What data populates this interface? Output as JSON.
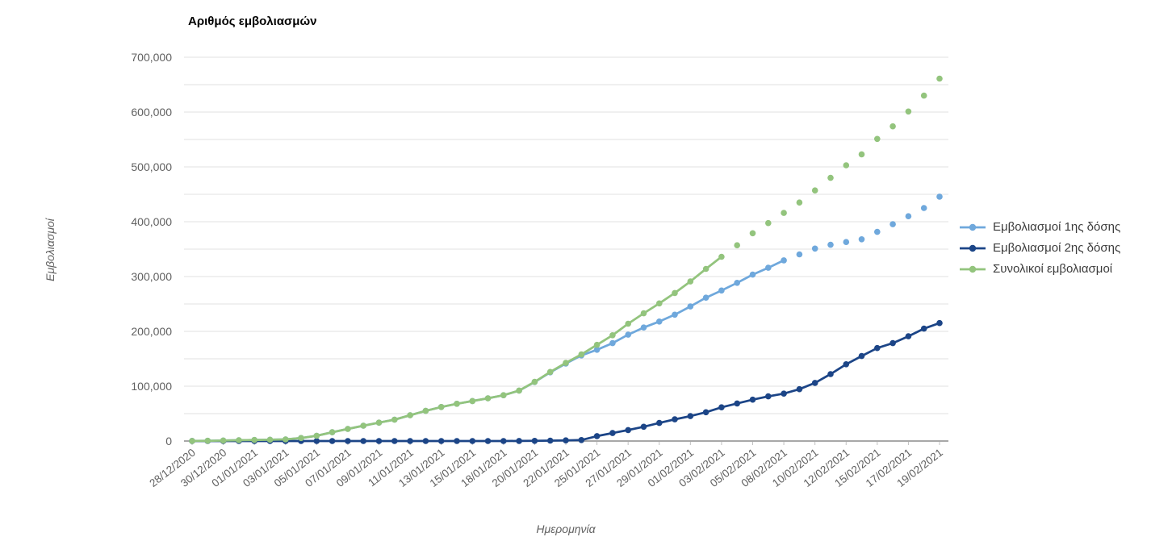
{
  "title": "Αριθμός εμβολιασμών",
  "chart_data": {
    "type": "line",
    "xlabel": "Ημερομηνία",
    "ylabel": "Εμβολιασμοί",
    "ylim": [
      0,
      700000
    ],
    "y_ticks": [
      0,
      100000,
      200000,
      300000,
      400000,
      500000,
      600000,
      700000
    ],
    "y_grid_interval": 50000,
    "x_label_every": 2,
    "grid": true,
    "legend_position": "right",
    "x": [
      "28/12/2020",
      "29/12/2020",
      "30/12/2020",
      "31/12/2020",
      "01/01/2021",
      "02/01/2021",
      "03/01/2021",
      "04/01/2021",
      "05/01/2021",
      "06/01/2021",
      "07/01/2021",
      "08/01/2021",
      "09/01/2021",
      "10/01/2021",
      "11/01/2021",
      "12/01/2021",
      "13/01/2021",
      "14/01/2021",
      "15/01/2021",
      "16/01/2021",
      "18/01/2021",
      "19/01/2021",
      "20/01/2021",
      "21/01/2021",
      "22/01/2021",
      "23/01/2021",
      "25/01/2021",
      "26/01/2021",
      "27/01/2021",
      "28/01/2021",
      "29/01/2021",
      "30/01/2021",
      "01/02/2021",
      "02/02/2021",
      "03/02/2021",
      "04/02/2021",
      "05/02/2021",
      "06/02/2021",
      "08/02/2021",
      "09/02/2021",
      "10/02/2021",
      "11/02/2021",
      "12/02/2021",
      "13/02/2021",
      "15/02/2021",
      "16/02/2021",
      "17/02/2021",
      "18/02/2021",
      "19/02/2021"
    ],
    "series": [
      {
        "name": "Εμβολιασμοί 1ης δόσης",
        "color": "#6fa8dc",
        "line_break_index": 38,
        "values": [
          200,
          500,
          900,
          1400,
          1900,
          2400,
          3000,
          5500,
          9500,
          16000,
          22000,
          28000,
          33500,
          39000,
          47000,
          55000,
          62000,
          68000,
          73000,
          78000,
          83500,
          91900,
          107700,
          125300,
          141300,
          156200,
          166500,
          178500,
          194000,
          207000,
          218000,
          230500,
          245500,
          261500,
          274500,
          288500,
          303500,
          316000,
          329500,
          340500,
          351000,
          358000,
          363000,
          368000,
          381500,
          395500,
          410000,
          425000,
          445800
        ]
      },
      {
        "name": "Εμβολιασμοί 2ης δόσης",
        "color": "#1c4587",
        "line_break_index": 48,
        "values": [
          0,
          0,
          0,
          0,
          0,
          0,
          0,
          0,
          0,
          0,
          0,
          0,
          0,
          0,
          0,
          0,
          0,
          0,
          0,
          0,
          0,
          100,
          300,
          700,
          1200,
          1800,
          9000,
          14500,
          20000,
          26000,
          33000,
          39500,
          45500,
          52500,
          61500,
          68500,
          75500,
          81500,
          86500,
          94500,
          106000,
          122000,
          140000,
          155000,
          169500,
          178500,
          191000,
          205000,
          215200
        ]
      },
      {
        "name": "Συνολικοί εμβολιασμοί",
        "color": "#93c47d",
        "line_break_index": 34,
        "values": [
          200,
          500,
          900,
          1400,
          1900,
          2400,
          3000,
          5500,
          9500,
          16000,
          22000,
          28000,
          33500,
          39000,
          47000,
          55000,
          62000,
          68000,
          73000,
          78000,
          83500,
          92000,
          108000,
          126000,
          142500,
          158000,
          175500,
          193000,
          214000,
          233000,
          251000,
          270000,
          291000,
          314000,
          336000,
          357000,
          379000,
          397500,
          416000,
          435000,
          457000,
          480000,
          503000,
          523000,
          551000,
          574000,
          601000,
          630000,
          661000
        ]
      }
    ],
    "style": {
      "gridline_color": "#e2e2e2",
      "axis_line_color": "#757575",
      "tick_label_color": "#616161",
      "legend_text_color": "#3c3c3c",
      "background": "#ffffff"
    }
  }
}
